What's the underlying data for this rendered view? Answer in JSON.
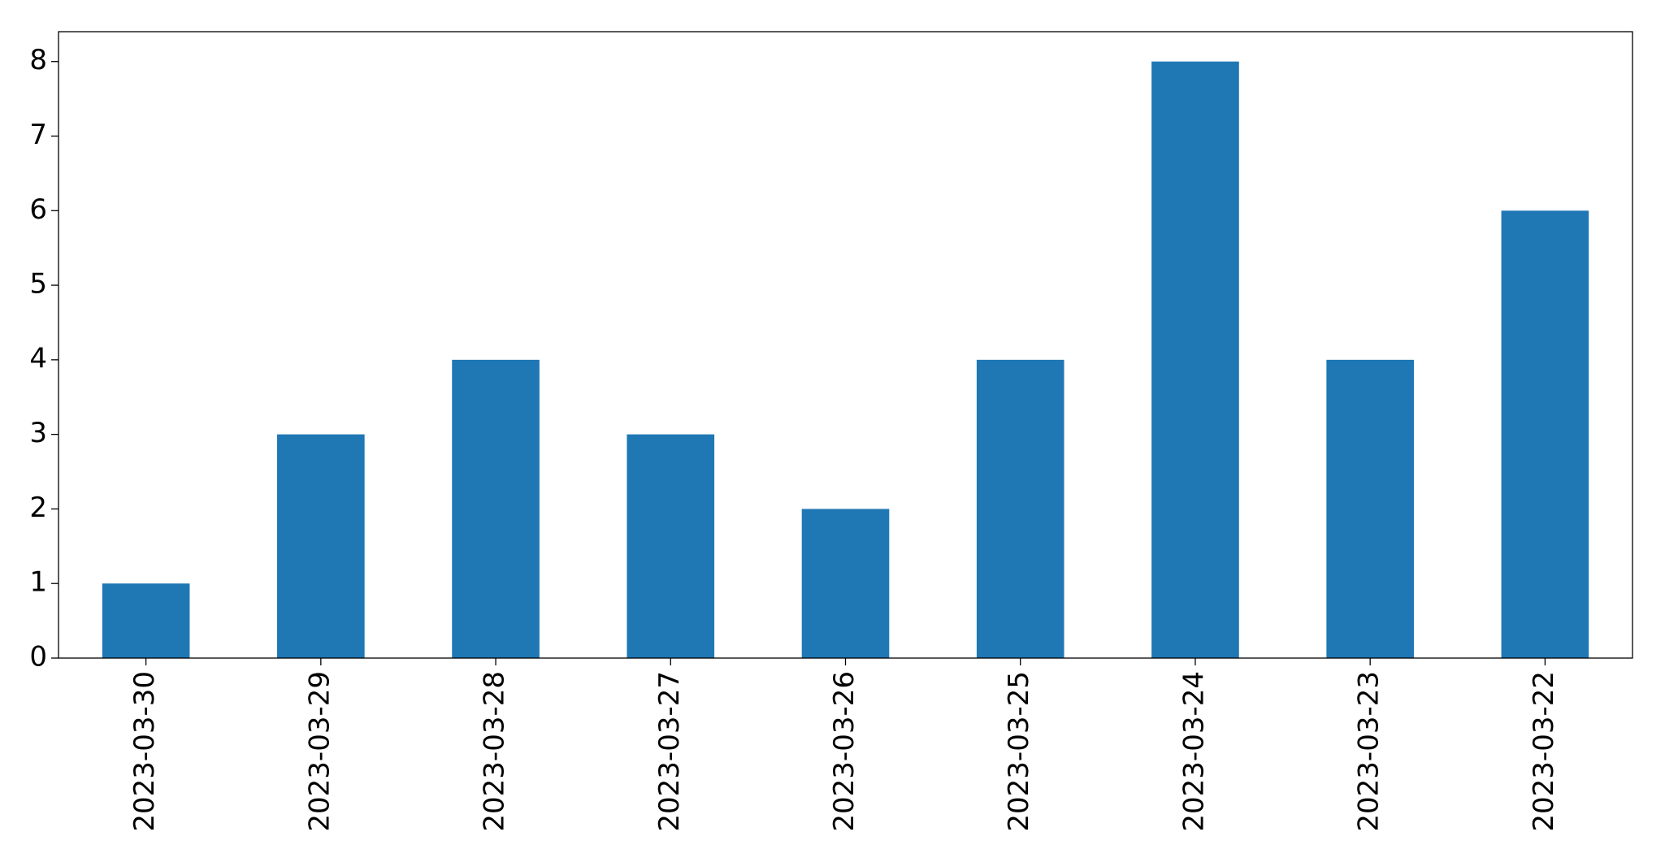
{
  "chart_data": {
    "type": "bar",
    "categories": [
      "2023-03-30",
      "2023-03-29",
      "2023-03-28",
      "2023-03-27",
      "2023-03-26",
      "2023-03-25",
      "2023-03-24",
      "2023-03-23",
      "2023-03-22"
    ],
    "values": [
      1,
      3,
      4,
      3,
      2,
      4,
      8,
      4,
      6
    ],
    "color": "#1f77b4",
    "ylim": [
      0,
      8.4
    ],
    "yticks": [
      0,
      1,
      2,
      3,
      4,
      5,
      6,
      7,
      8
    ],
    "grid": false
  }
}
